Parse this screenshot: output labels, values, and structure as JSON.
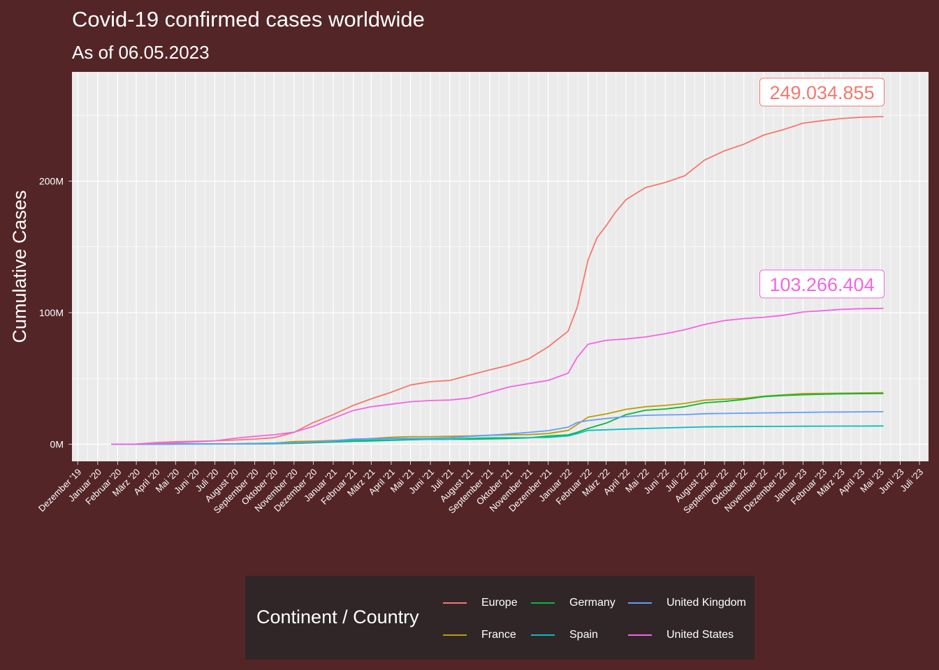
{
  "title": "Covid-19 confirmed cases worldwide",
  "subtitle": "As of 06.05.2023",
  "chart_data": {
    "type": "line",
    "title": "Covid-19 confirmed cases worldwide",
    "subtitle": "As of 06.05.2023",
    "xlabel": "",
    "ylabel": "Cumulative Cases",
    "x_axis_type": "date",
    "xlim": [
      "2019-11-22",
      "2023-07-15"
    ],
    "ylim": [
      -13000000,
      283000000
    ],
    "y_ticks": [
      0,
      100000000,
      200000000
    ],
    "y_tick_labels": [
      "0M",
      "100M",
      "200M"
    ],
    "x_ticks": [
      "2019-12-01",
      "2020-01-01",
      "2020-02-01",
      "2020-03-01",
      "2020-04-01",
      "2020-05-01",
      "2020-06-01",
      "2020-07-01",
      "2020-08-01",
      "2020-09-01",
      "2020-10-01",
      "2020-11-01",
      "2020-12-01",
      "2021-01-01",
      "2021-02-01",
      "2021-03-01",
      "2021-04-01",
      "2021-05-01",
      "2021-06-01",
      "2021-07-01",
      "2021-08-01",
      "2021-09-01",
      "2021-10-01",
      "2021-11-01",
      "2021-12-01",
      "2022-01-01",
      "2022-02-01",
      "2022-03-01",
      "2022-04-01",
      "2022-05-01",
      "2022-06-01",
      "2022-07-01",
      "2022-08-01",
      "2022-09-01",
      "2022-10-01",
      "2022-11-01",
      "2022-12-01",
      "2023-01-01",
      "2023-02-01",
      "2023-03-01",
      "2023-04-01",
      "2023-05-01",
      "2023-06-01",
      "2023-07-01"
    ],
    "x_tick_labels": [
      "Dezember '19",
      "Januar '20",
      "Februar '20",
      "März '20",
      "April '20",
      "Mai '20",
      "Juni '20",
      "Juli '20",
      "August '20",
      "September '20",
      "Oktober '20",
      "November '20",
      "Dezember '20",
      "Januar '21",
      "Februar '21",
      "März '21",
      "April '21",
      "Mai '21",
      "Juni '21",
      "Juli '21",
      "August '21",
      "September '21",
      "Oktober '21",
      "November '21",
      "Dezember '21",
      "Januar '22",
      "Februar '22",
      "März '22",
      "April '22",
      "Mai '22",
      "Juni '22",
      "Juli '22",
      "August '22",
      "September '22",
      "Oktober '22",
      "November '22",
      "Dezember '22",
      "Januar '23",
      "Februar '23",
      "März '23",
      "April '23",
      "Mai '23",
      "Juni '23",
      "Juli '23"
    ],
    "grid": true,
    "legend_position": "bottom",
    "legend_title": "Continent / Country",
    "series": [
      {
        "name": "Europe",
        "color": "#F8766D",
        "points": [
          [
            "2020-01-22",
            0
          ],
          [
            "2020-03-01",
            0.1
          ],
          [
            "2020-04-01",
            1.2
          ],
          [
            "2020-05-01",
            1.9
          ],
          [
            "2020-06-01",
            2.2
          ],
          [
            "2020-07-01",
            2.6
          ],
          [
            "2020-08-01",
            3.2
          ],
          [
            "2020-09-01",
            3.9
          ],
          [
            "2020-10-01",
            5
          ],
          [
            "2020-11-01",
            9
          ],
          [
            "2020-12-01",
            16.5
          ],
          [
            "2021-01-01",
            22.5
          ],
          [
            "2021-02-01",
            29.5
          ],
          [
            "2021-03-01",
            34.5
          ],
          [
            "2021-04-01",
            39.5
          ],
          [
            "2021-05-01",
            45
          ],
          [
            "2021-06-01",
            47.5
          ],
          [
            "2021-07-01",
            48.5
          ],
          [
            "2021-08-01",
            52.5
          ],
          [
            "2021-09-01",
            56.5
          ],
          [
            "2021-10-01",
            60
          ],
          [
            "2021-11-01",
            65
          ],
          [
            "2021-12-01",
            74
          ],
          [
            "2022-01-01",
            86
          ],
          [
            "2022-01-15",
            104
          ],
          [
            "2022-02-01",
            140
          ],
          [
            "2022-02-15",
            157
          ],
          [
            "2022-03-01",
            166
          ],
          [
            "2022-03-15",
            176
          ],
          [
            "2022-04-01",
            186
          ],
          [
            "2022-05-01",
            195
          ],
          [
            "2022-06-01",
            199
          ],
          [
            "2022-07-01",
            204
          ],
          [
            "2022-08-01",
            216
          ],
          [
            "2022-09-01",
            223
          ],
          [
            "2022-10-01",
            228
          ],
          [
            "2022-11-01",
            235
          ],
          [
            "2022-12-01",
            239
          ],
          [
            "2023-01-01",
            244
          ],
          [
            "2023-02-01",
            246
          ],
          [
            "2023-03-01",
            247.5
          ],
          [
            "2023-04-01",
            248.5
          ],
          [
            "2023-05-06",
            249.03
          ]
        ]
      },
      {
        "name": "France",
        "color": "#B79F00",
        "points": [
          [
            "2020-01-24",
            0
          ],
          [
            "2020-04-01",
            0.1
          ],
          [
            "2020-06-01",
            0.2
          ],
          [
            "2020-08-01",
            0.3
          ],
          [
            "2020-10-01",
            0.8
          ],
          [
            "2020-11-01",
            2
          ],
          [
            "2020-12-01",
            2.3
          ],
          [
            "2021-01-01",
            2.8
          ],
          [
            "2021-02-01",
            3.5
          ],
          [
            "2021-03-01",
            4.3
          ],
          [
            "2021-04-01",
            5.3
          ],
          [
            "2021-05-01",
            5.8
          ],
          [
            "2021-06-01",
            5.8
          ],
          [
            "2021-07-01",
            6
          ],
          [
            "2021-08-01",
            6.3
          ],
          [
            "2021-09-01",
            6.8
          ],
          [
            "2021-10-01",
            7.1
          ],
          [
            "2021-11-01",
            7.3
          ],
          [
            "2021-12-01",
            8.1
          ],
          [
            "2022-01-01",
            10.5
          ],
          [
            "2022-01-15",
            15
          ],
          [
            "2022-02-01",
            20.5
          ],
          [
            "2022-03-01",
            23
          ],
          [
            "2022-04-01",
            26.5
          ],
          [
            "2022-05-01",
            28.5
          ],
          [
            "2022-06-01",
            29.5
          ],
          [
            "2022-07-01",
            31
          ],
          [
            "2022-08-01",
            33.5
          ],
          [
            "2022-09-01",
            34.2
          ],
          [
            "2022-10-01",
            34.8
          ],
          [
            "2022-11-01",
            36.5
          ],
          [
            "2022-12-01",
            37.5
          ],
          [
            "2023-01-01",
            38.5
          ],
          [
            "2023-02-01",
            38.6
          ],
          [
            "2023-03-01",
            38.8
          ],
          [
            "2023-04-01",
            39
          ],
          [
            "2023-05-06",
            39.2
          ]
        ]
      },
      {
        "name": "Germany",
        "color": "#00BA38",
        "points": [
          [
            "2020-01-28",
            0
          ],
          [
            "2020-04-01",
            0.1
          ],
          [
            "2020-06-01",
            0.18
          ],
          [
            "2020-09-01",
            0.25
          ],
          [
            "2020-10-01",
            0.3
          ],
          [
            "2020-11-01",
            0.6
          ],
          [
            "2020-12-01",
            1.1
          ],
          [
            "2021-01-01",
            1.7
          ],
          [
            "2021-02-01",
            2.2
          ],
          [
            "2021-03-01",
            2.5
          ],
          [
            "2021-04-01",
            2.9
          ],
          [
            "2021-05-01",
            3.4
          ],
          [
            "2021-06-01",
            3.7
          ],
          [
            "2021-07-01",
            3.75
          ],
          [
            "2021-08-01",
            3.8
          ],
          [
            "2021-09-01",
            4.1
          ],
          [
            "2021-10-01",
            4.3
          ],
          [
            "2021-11-01",
            4.9
          ],
          [
            "2021-12-01",
            6.2
          ],
          [
            "2022-01-01",
            7.1
          ],
          [
            "2022-01-15",
            9
          ],
          [
            "2022-02-01",
            12
          ],
          [
            "2022-03-01",
            16
          ],
          [
            "2022-04-01",
            22.5
          ],
          [
            "2022-05-01",
            25.8
          ],
          [
            "2022-06-01",
            26.8
          ],
          [
            "2022-07-01",
            28.5
          ],
          [
            "2022-08-01",
            31.5
          ],
          [
            "2022-09-01",
            32.5
          ],
          [
            "2022-10-01",
            34
          ],
          [
            "2022-11-01",
            36.2
          ],
          [
            "2022-12-01",
            37
          ],
          [
            "2023-01-01",
            37.6
          ],
          [
            "2023-02-01",
            38
          ],
          [
            "2023-03-01",
            38.3
          ],
          [
            "2023-04-01",
            38.4
          ],
          [
            "2023-05-06",
            38.5
          ]
        ]
      },
      {
        "name": "Spain",
        "color": "#00BFC4",
        "points": [
          [
            "2020-02-01",
            0
          ],
          [
            "2020-04-01",
            0.1
          ],
          [
            "2020-06-01",
            0.24
          ],
          [
            "2020-08-01",
            0.3
          ],
          [
            "2020-10-01",
            0.8
          ],
          [
            "2020-11-01",
            1.1
          ],
          [
            "2020-12-01",
            1.6
          ],
          [
            "2021-01-01",
            2
          ],
          [
            "2021-02-01",
            2.8
          ],
          [
            "2021-03-01",
            3.2
          ],
          [
            "2021-04-01",
            3.3
          ],
          [
            "2021-05-01",
            3.6
          ],
          [
            "2021-06-01",
            3.7
          ],
          [
            "2021-07-01",
            3.9
          ],
          [
            "2021-08-01",
            4.5
          ],
          [
            "2021-09-01",
            4.9
          ],
          [
            "2021-10-01",
            4.95
          ],
          [
            "2021-11-01",
            5
          ],
          [
            "2021-12-01",
            5.2
          ],
          [
            "2022-01-01",
            6.3
          ],
          [
            "2022-01-15",
            8
          ],
          [
            "2022-02-01",
            10.5
          ],
          [
            "2022-03-01",
            11
          ],
          [
            "2022-04-01",
            11.5
          ],
          [
            "2022-05-01",
            12
          ],
          [
            "2022-06-01",
            12.4
          ],
          [
            "2022-07-01",
            12.8
          ],
          [
            "2022-08-01",
            13.2
          ],
          [
            "2022-09-01",
            13.3
          ],
          [
            "2022-10-01",
            13.4
          ],
          [
            "2022-11-01",
            13.5
          ],
          [
            "2022-12-01",
            13.6
          ],
          [
            "2023-01-01",
            13.7
          ],
          [
            "2023-02-01",
            13.75
          ],
          [
            "2023-03-01",
            13.8
          ],
          [
            "2023-04-01",
            13.8
          ],
          [
            "2023-05-06",
            13.9
          ]
        ]
      },
      {
        "name": "United Kingdom",
        "color": "#619CFF",
        "points": [
          [
            "2020-01-31",
            0
          ],
          [
            "2020-04-01",
            0.05
          ],
          [
            "2020-06-01",
            0.28
          ],
          [
            "2020-08-01",
            0.31
          ],
          [
            "2020-10-01",
            0.5
          ],
          [
            "2020-11-01",
            1
          ],
          [
            "2020-12-01",
            1.7
          ],
          [
            "2021-01-01",
            2.5
          ],
          [
            "2021-02-01",
            3.9
          ],
          [
            "2021-03-01",
            4.2
          ],
          [
            "2021-04-01",
            4.4
          ],
          [
            "2021-05-01",
            4.45
          ],
          [
            "2021-06-01",
            4.5
          ],
          [
            "2021-07-01",
            4.9
          ],
          [
            "2021-08-01",
            5.9
          ],
          [
            "2021-09-01",
            6.8
          ],
          [
            "2021-10-01",
            7.8
          ],
          [
            "2021-11-01",
            9
          ],
          [
            "2021-12-01",
            10.3
          ],
          [
            "2022-01-01",
            13
          ],
          [
            "2022-01-15",
            16.5
          ],
          [
            "2022-02-01",
            18
          ],
          [
            "2022-03-01",
            19.5
          ],
          [
            "2022-04-01",
            21
          ],
          [
            "2022-05-01",
            22
          ],
          [
            "2022-06-01",
            22.3
          ],
          [
            "2022-07-01",
            22.5
          ],
          [
            "2022-08-01",
            23.2
          ],
          [
            "2022-09-01",
            23.4
          ],
          [
            "2022-10-01",
            23.6
          ],
          [
            "2022-11-01",
            23.8
          ],
          [
            "2022-12-01",
            24
          ],
          [
            "2023-01-01",
            24.2
          ],
          [
            "2023-02-01",
            24.4
          ],
          [
            "2023-03-01",
            24.5
          ],
          [
            "2023-04-01",
            24.6
          ],
          [
            "2023-05-06",
            24.7
          ]
        ]
      },
      {
        "name": "United States",
        "color": "#F564E3",
        "points": [
          [
            "2020-01-22",
            0
          ],
          [
            "2020-03-01",
            0.1
          ],
          [
            "2020-04-01",
            0.8
          ],
          [
            "2020-05-01",
            1.1
          ],
          [
            "2020-06-01",
            1.8
          ],
          [
            "2020-07-01",
            2.6
          ],
          [
            "2020-08-01",
            4.5
          ],
          [
            "2020-09-01",
            6
          ],
          [
            "2020-10-01",
            7.2
          ],
          [
            "2020-11-01",
            9.1
          ],
          [
            "2020-12-01",
            13.5
          ],
          [
            "2021-01-01",
            19.8
          ],
          [
            "2021-02-01",
            25.6
          ],
          [
            "2021-03-01",
            28.5
          ],
          [
            "2021-04-01",
            30.4
          ],
          [
            "2021-05-01",
            32.3
          ],
          [
            "2021-06-01",
            33.2
          ],
          [
            "2021-07-01",
            33.6
          ],
          [
            "2021-08-01",
            35.1
          ],
          [
            "2021-09-01",
            39.4
          ],
          [
            "2021-10-01",
            43.5
          ],
          [
            "2021-11-01",
            46.1
          ],
          [
            "2021-12-01",
            48.5
          ],
          [
            "2022-01-01",
            54
          ],
          [
            "2022-01-15",
            66
          ],
          [
            "2022-02-01",
            76
          ],
          [
            "2022-03-01",
            79
          ],
          [
            "2022-04-01",
            80
          ],
          [
            "2022-05-01",
            81.5
          ],
          [
            "2022-06-01",
            84
          ],
          [
            "2022-07-01",
            87
          ],
          [
            "2022-08-01",
            91
          ],
          [
            "2022-09-01",
            94
          ],
          [
            "2022-10-01",
            95.5
          ],
          [
            "2022-11-01",
            96.5
          ],
          [
            "2022-12-01",
            98
          ],
          [
            "2023-01-01",
            100.5
          ],
          [
            "2023-02-01",
            101.5
          ],
          [
            "2023-03-01",
            102.5
          ],
          [
            "2023-04-01",
            103
          ],
          [
            "2023-05-06",
            103.27
          ]
        ]
      }
    ],
    "y_unit": "millions",
    "annotations": [
      {
        "text": "249.034.855",
        "x": "2023-05-06",
        "y": 249034855,
        "color": "#F8766D"
      },
      {
        "text": "103.266.404",
        "x": "2023-05-06",
        "y": 103266404,
        "color": "#F564E3"
      }
    ]
  }
}
